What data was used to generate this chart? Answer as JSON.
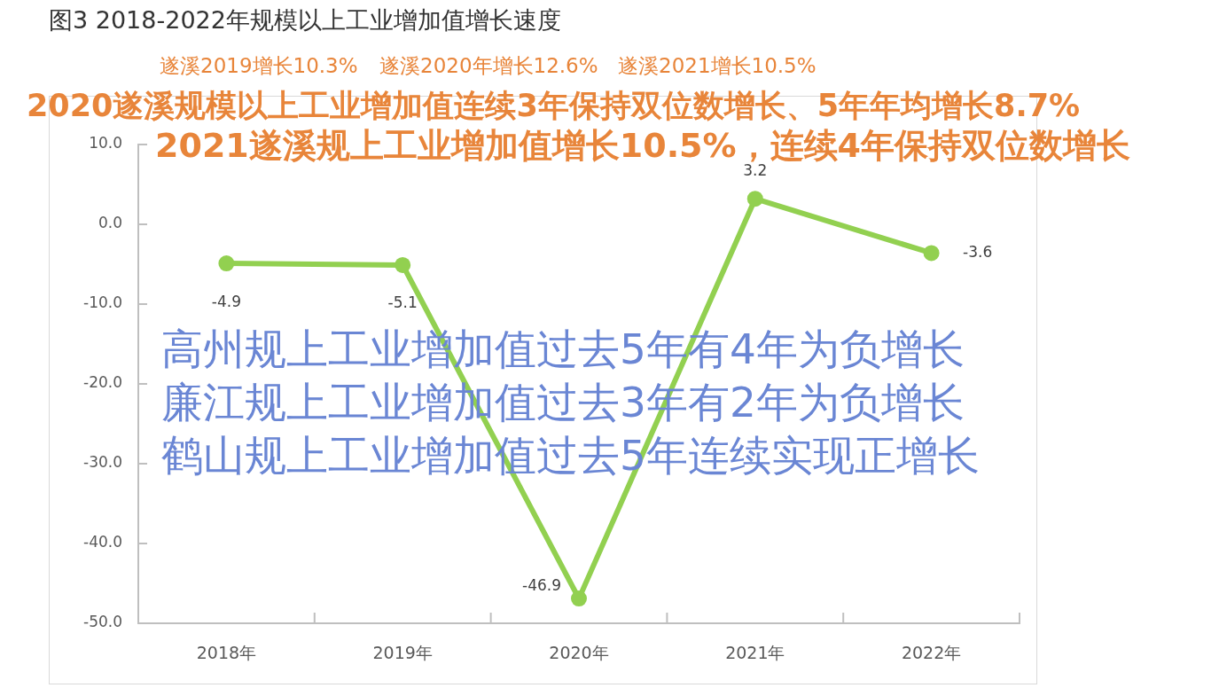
{
  "chart_data": {
    "type": "line",
    "title": "图3 2018-2022年规模以上工业增加值增长速度",
    "categories": [
      "2018年",
      "2019年",
      "2020年",
      "2021年",
      "2022年"
    ],
    "values": [
      -4.9,
      -5.1,
      -46.9,
      3.2,
      -3.6
    ],
    "color": "#92d050",
    "ylim": [
      -50,
      10
    ],
    "yticks": [
      {
        "value": -50,
        "label": "-50.0"
      },
      {
        "value": -40,
        "label": "-40.0"
      },
      {
        "value": -30,
        "label": "-30.0"
      },
      {
        "value": -20,
        "label": "-20.0"
      },
      {
        "value": -10,
        "label": "-10.0"
      },
      {
        "value": 0,
        "label": "0.0"
      },
      {
        "value": 10,
        "label": "10.0"
      }
    ],
    "marker": "circle",
    "data_labels": true,
    "annotations": [
      "遂溪2019增长10.3%",
      "遂溪2020年增长12.6%",
      "遂溪2021增长10.5%",
      "2020遂溪规模以上工业增加值连续3年保持双位数增长、5年年均增长8.7%",
      "2021遂溪规上工业增加值增长10.5%，连续4年保持双位数增长",
      "高州规上工业增加值过去5年有4年为负增长",
      "廉江规上工业增加值过去3年有2年为负增长",
      "鹤山规上工业增加值过去5年连续实现正增长"
    ]
  }
}
